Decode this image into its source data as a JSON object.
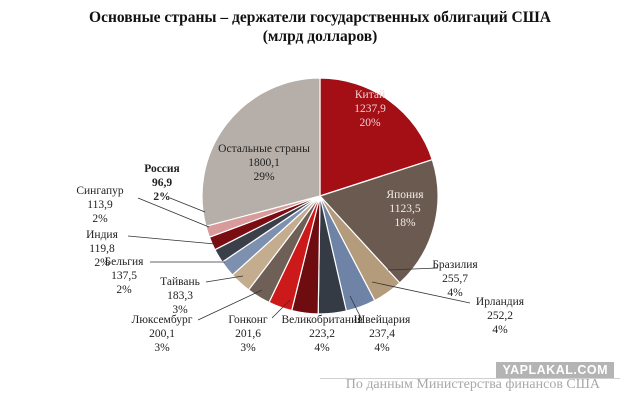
{
  "title_line1": "Основные страны – держатели государственных облигаций США",
  "title_line2": "(млрд долларов)",
  "watermark": "YAPLAKAL.COM",
  "source": "По данным Министерства финансов США",
  "chart_data": {
    "type": "pie",
    "title": "Основные страны – держатели государственных облигаций США (млрд долларов)",
    "series": [
      {
        "name": "Китай",
        "value": 1237.9,
        "value_label": "1237,9",
        "pct_label": "20%",
        "color": "#a30f15"
      },
      {
        "name": "Япония",
        "value": 1123.5,
        "value_label": "1123,5",
        "pct_label": "18%",
        "color": "#6b5a50"
      },
      {
        "name": "Бразилия",
        "value": 255.7,
        "value_label": "255,7",
        "pct_label": "4%",
        "color": "#b39b7c"
      },
      {
        "name": "Ирландия",
        "value": 252.2,
        "value_label": "252,2",
        "pct_label": "4%",
        "color": "#6f83a6"
      },
      {
        "name": "Швейцария",
        "value": 237.4,
        "value_label": "237,4",
        "pct_label": "4%",
        "color": "#353b45"
      },
      {
        "name": "Великобритания",
        "value": 223.2,
        "value_label": "223,2",
        "pct_label": "4%",
        "color": "#6e0c10"
      },
      {
        "name": "Гонконг",
        "value": 201.6,
        "value_label": "201,6",
        "pct_label": "3%",
        "color": "#cc1a1a"
      },
      {
        "name": "Люксембург",
        "value": 200.1,
        "value_label": "200,1",
        "pct_label": "3%",
        "color": "#6f6057"
      },
      {
        "name": "Тайвань",
        "value": 183.3,
        "value_label": "183,3",
        "pct_label": "3%",
        "color": "#c4ac8e"
      },
      {
        "name": "Бельгия",
        "value": 137.5,
        "value_label": "137,5",
        "pct_label": "2%",
        "color": "#7e90b0"
      },
      {
        "name": "Индия",
        "value": 119.8,
        "value_label": "119,8",
        "pct_label": "2%",
        "color": "#3a3f49"
      },
      {
        "name": "Сингапур",
        "value": 113.9,
        "value_label": "113,9",
        "pct_label": "2%",
        "color": "#7a0d12"
      },
      {
        "name": "Россия",
        "value": 96.9,
        "value_label": "96,9",
        "pct_label": "2%",
        "color": "#d89a9a"
      },
      {
        "name": "Остальные страны",
        "value": 1800.1,
        "value_label": "1800,1",
        "pct_label": "29%",
        "color": "#b5aea9"
      }
    ]
  }
}
